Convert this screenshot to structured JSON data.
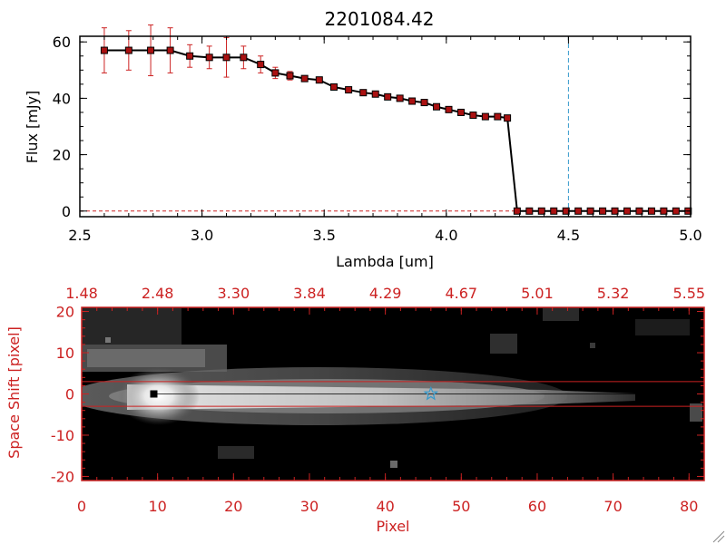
{
  "figure": {
    "title": "2201084.42"
  },
  "colors": {
    "axes": "#000000",
    "accent_red": "#cc2222",
    "marker_fill": "#aa1111",
    "cyan_line": "#3399cc",
    "image_bg": "#000000"
  },
  "chart_data": [
    {
      "type": "line",
      "title": "2201084.42",
      "xlabel": "Lambda [um]",
      "ylabel": "Flux [mJy]",
      "xlim": [
        2.5,
        5.0
      ],
      "ylim": [
        -2,
        62
      ],
      "x_ticks": [
        2.5,
        3.0,
        3.5,
        4.0,
        4.5,
        5.0
      ],
      "x_tick_labels": [
        "2.5",
        "3.0",
        "3.5",
        "4.0",
        "4.5",
        "5.0"
      ],
      "y_ticks": [
        0,
        20,
        40,
        60
      ],
      "y_tick_labels": [
        "0",
        "20",
        "40",
        "60"
      ],
      "vline_x": 4.5,
      "series": [
        {
          "x": [
            2.6,
            2.7,
            2.79,
            2.87,
            2.95,
            3.03,
            3.1,
            3.17,
            3.24,
            3.3,
            3.36,
            3.42,
            3.48,
            3.54,
            3.6,
            3.66,
            3.71,
            3.76,
            3.81,
            3.86,
            3.91,
            3.96,
            4.01,
            4.06,
            4.11,
            4.16,
            4.21,
            4.25,
            4.29,
            4.34,
            4.39,
            4.44,
            4.49,
            4.54,
            4.59,
            4.64,
            4.69,
            4.74,
            4.79,
            4.84,
            4.89,
            4.94,
            4.99
          ],
          "y": [
            57,
            57,
            57,
            57,
            55,
            54.5,
            54.5,
            54.5,
            52,
            49,
            48,
            47,
            46.5,
            44,
            43,
            42,
            41.5,
            40.5,
            40,
            39,
            38.5,
            37,
            36,
            35,
            34,
            33.5,
            33.5,
            33,
            0,
            0,
            0,
            0,
            0,
            0,
            0,
            0,
            0,
            0,
            0,
            0,
            0,
            0,
            0
          ],
          "yerr": [
            8,
            7,
            9,
            8,
            4,
            4,
            7,
            4,
            3,
            2,
            1.5,
            1,
            1,
            0.5,
            0.5,
            0.5,
            0.5,
            0.5,
            0.5,
            0.5,
            0.5,
            0.5,
            0.5,
            0.5,
            0.5,
            0.5,
            0.5,
            0.5,
            0,
            0,
            0,
            0,
            0,
            0,
            0,
            0,
            0,
            0,
            0,
            0,
            0,
            0,
            0
          ]
        }
      ]
    },
    {
      "type": "heatmap",
      "xlabel": "Pixel",
      "ylabel": "Space Shift [pixel]",
      "xlim": [
        0,
        82
      ],
      "ylim": [
        -21,
        21
      ],
      "x_ticks": [
        0,
        10,
        20,
        30,
        40,
        50,
        60,
        70,
        80
      ],
      "x_tick_labels": [
        "0",
        "10",
        "20",
        "30",
        "40",
        "50",
        "60",
        "70",
        "80"
      ],
      "y_ticks": [
        -20,
        -10,
        0,
        10,
        20
      ],
      "y_tick_labels": [
        "-20",
        "-10",
        "0",
        "10",
        "20"
      ],
      "top_axis_label_positions": [
        0,
        10,
        20,
        30,
        40,
        50,
        60,
        70,
        80
      ],
      "top_axis_labels": [
        "1.48",
        "2.48",
        "3.30",
        "3.84",
        "4.29",
        "4.67",
        "5.01",
        "5.32",
        "5.55"
      ],
      "hlines_y": [
        3,
        -3
      ],
      "trace_y": 0,
      "source_marker": {
        "x": 9.5,
        "y": 0
      },
      "star_marker": {
        "x": 46,
        "y": 0
      }
    }
  ]
}
